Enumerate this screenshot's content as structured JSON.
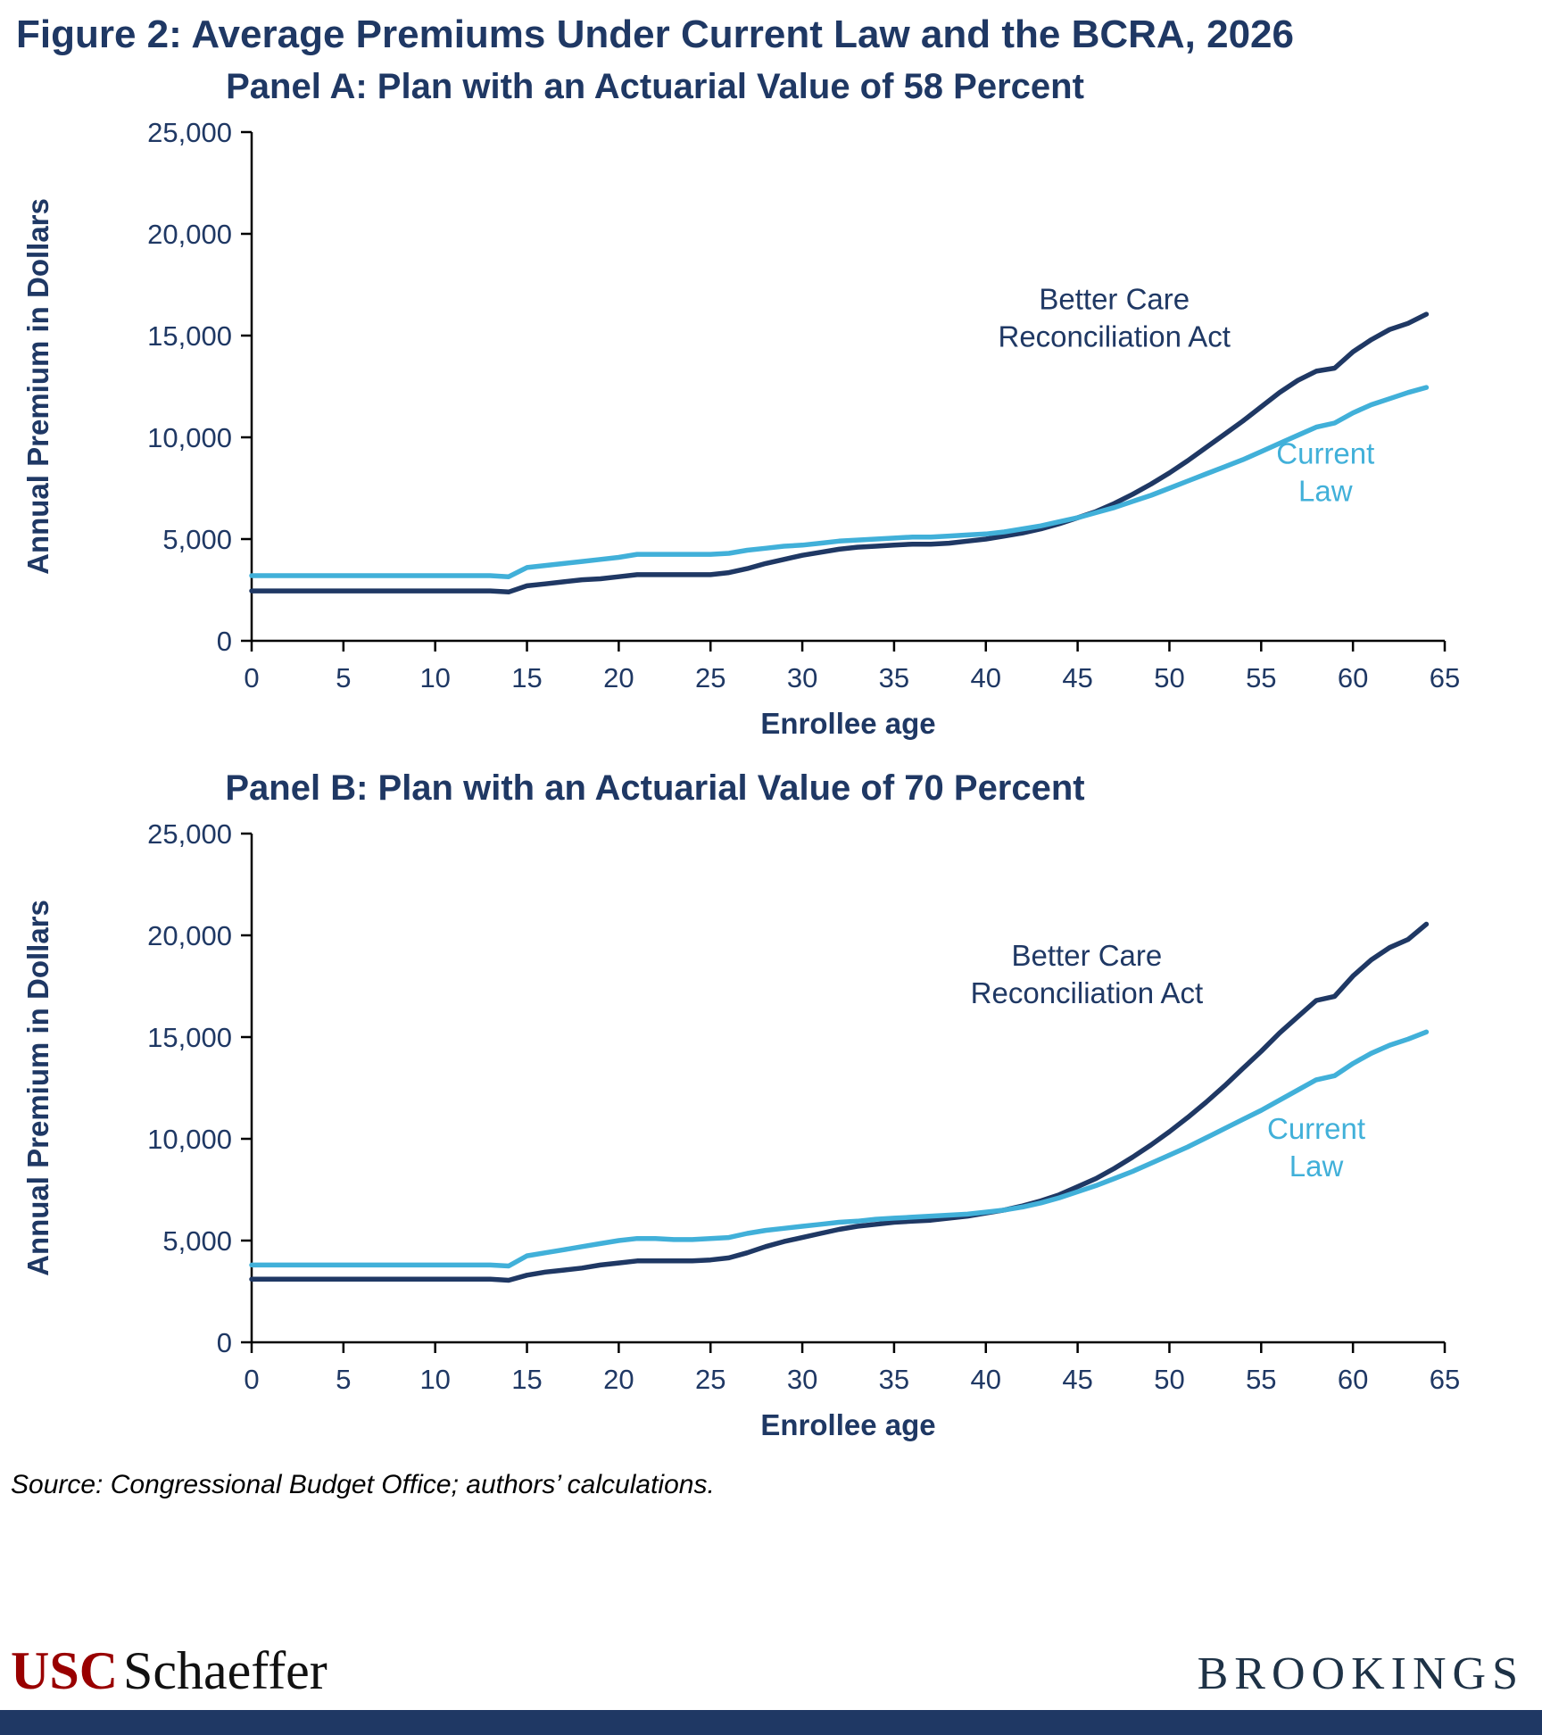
{
  "figure": {
    "title": "Figure 2: Average Premiums Under Current Law and the BCRA, 2026",
    "source": "Source: Congressional Budget Office; authors’ calculations.",
    "logos": {
      "usc": "USC",
      "schaeffer": "Schaeffer",
      "brookings": "BROOKINGS"
    }
  },
  "colors": {
    "navy": "#1F3864",
    "light_blue": "#41B0D9",
    "axis": "#000000",
    "tick_label": "#1F3864",
    "usc_red": "#990000",
    "brookings_navy": "#1E3246",
    "footer_bar": "#1F3864"
  },
  "chart_data": [
    {
      "type": "line",
      "title": "Panel A: Plan with an Actuarial Value of 58 Percent",
      "xlabel": "Enrollee age",
      "ylabel": "Annual Premium in Dollars",
      "xlim": [
        0,
        65
      ],
      "ylim": [
        0,
        25000
      ],
      "xticks": [
        0,
        5,
        10,
        15,
        20,
        25,
        30,
        35,
        40,
        45,
        50,
        55,
        60,
        65
      ],
      "yticks": [
        0,
        5000,
        10000,
        15000,
        20000,
        25000
      ],
      "grid": false,
      "x": [
        0,
        1,
        2,
        3,
        4,
        5,
        6,
        7,
        8,
        9,
        10,
        11,
        12,
        13,
        14,
        15,
        16,
        17,
        18,
        19,
        20,
        21,
        22,
        23,
        24,
        25,
        26,
        27,
        28,
        29,
        30,
        31,
        32,
        33,
        34,
        35,
        36,
        37,
        38,
        39,
        40,
        41,
        42,
        43,
        44,
        45,
        46,
        47,
        48,
        49,
        50,
        51,
        52,
        53,
        54,
        55,
        56,
        57,
        58,
        59,
        60,
        61,
        62,
        63,
        64
      ],
      "series": [
        {
          "name": "Better Care Reconciliation Act",
          "color": "navy",
          "values": [
            2450,
            2450,
            2450,
            2450,
            2450,
            2450,
            2450,
            2450,
            2450,
            2450,
            2450,
            2450,
            2450,
            2450,
            2400,
            2700,
            2800,
            2900,
            3000,
            3050,
            3150,
            3250,
            3250,
            3250,
            3250,
            3250,
            3350,
            3550,
            3800,
            4000,
            4200,
            4350,
            4500,
            4600,
            4650,
            4700,
            4750,
            4750,
            4800,
            4900,
            5000,
            5150,
            5300,
            5500,
            5750,
            6050,
            6350,
            6750,
            7200,
            7700,
            8250,
            8850,
            9500,
            10150,
            10800,
            11500,
            12200,
            12800,
            13250,
            13400,
            14200,
            14800,
            15300,
            15600,
            16050
          ]
        },
        {
          "name": "Current Law",
          "color": "light_blue",
          "values": [
            3200,
            3200,
            3200,
            3200,
            3200,
            3200,
            3200,
            3200,
            3200,
            3200,
            3200,
            3200,
            3200,
            3200,
            3150,
            3600,
            3700,
            3800,
            3900,
            4000,
            4100,
            4250,
            4250,
            4250,
            4250,
            4250,
            4300,
            4450,
            4550,
            4650,
            4700,
            4800,
            4900,
            4950,
            5000,
            5050,
            5100,
            5100,
            5150,
            5200,
            5250,
            5350,
            5500,
            5650,
            5850,
            6050,
            6300,
            6550,
            6850,
            7150,
            7500,
            7850,
            8200,
            8550,
            8900,
            9300,
            9700,
            10100,
            10500,
            10700,
            11200,
            11600,
            11900,
            12200,
            12450
          ]
        }
      ],
      "annotations": [
        {
          "lines": [
            "Better Care",
            "Reconciliation Act"
          ],
          "x": 47,
          "y": 16300,
          "color": "navy"
        },
        {
          "lines": [
            "Current",
            "Law"
          ],
          "x": 58.5,
          "y": 8700,
          "color": "light_blue"
        }
      ]
    },
    {
      "type": "line",
      "title": "Panel B: Plan with an Actuarial Value of 70 Percent",
      "xlabel": "Enrollee age",
      "ylabel": "Annual Premium in Dollars",
      "xlim": [
        0,
        65
      ],
      "ylim": [
        0,
        25000
      ],
      "xticks": [
        0,
        5,
        10,
        15,
        20,
        25,
        30,
        35,
        40,
        45,
        50,
        55,
        60,
        65
      ],
      "yticks": [
        0,
        5000,
        10000,
        15000,
        20000,
        25000
      ],
      "grid": false,
      "x": [
        0,
        1,
        2,
        3,
        4,
        5,
        6,
        7,
        8,
        9,
        10,
        11,
        12,
        13,
        14,
        15,
        16,
        17,
        18,
        19,
        20,
        21,
        22,
        23,
        24,
        25,
        26,
        27,
        28,
        29,
        30,
        31,
        32,
        33,
        34,
        35,
        36,
        37,
        38,
        39,
        40,
        41,
        42,
        43,
        44,
        45,
        46,
        47,
        48,
        49,
        50,
        51,
        52,
        53,
        54,
        55,
        56,
        57,
        58,
        59,
        60,
        61,
        62,
        63,
        64
      ],
      "series": [
        {
          "name": "Better Care Reconciliation Act",
          "color": "navy",
          "values": [
            3100,
            3100,
            3100,
            3100,
            3100,
            3100,
            3100,
            3100,
            3100,
            3100,
            3100,
            3100,
            3100,
            3100,
            3050,
            3300,
            3450,
            3550,
            3650,
            3800,
            3900,
            4000,
            4000,
            4000,
            4000,
            4050,
            4150,
            4400,
            4700,
            4950,
            5150,
            5350,
            5550,
            5700,
            5800,
            5900,
            5950,
            6000,
            6100,
            6200,
            6350,
            6500,
            6700,
            6950,
            7250,
            7650,
            8050,
            8550,
            9100,
            9700,
            10350,
            11050,
            11800,
            12600,
            13450,
            14300,
            15200,
            16000,
            16800,
            17000,
            18000,
            18800,
            19400,
            19800,
            20550
          ]
        },
        {
          "name": "Current Law",
          "color": "light_blue",
          "values": [
            3800,
            3800,
            3800,
            3800,
            3800,
            3800,
            3800,
            3800,
            3800,
            3800,
            3800,
            3800,
            3800,
            3800,
            3750,
            4250,
            4400,
            4550,
            4700,
            4850,
            5000,
            5100,
            5100,
            5050,
            5050,
            5100,
            5150,
            5350,
            5500,
            5600,
            5700,
            5800,
            5900,
            5950,
            6050,
            6100,
            6150,
            6200,
            6250,
            6300,
            6400,
            6500,
            6650,
            6850,
            7100,
            7400,
            7700,
            8050,
            8400,
            8800,
            9200,
            9600,
            10050,
            10500,
            10950,
            11400,
            11900,
            12400,
            12900,
            13100,
            13700,
            14200,
            14600,
            14900,
            15250
          ]
        }
      ],
      "annotations": [
        {
          "lines": [
            "Better Care",
            "Reconciliation Act"
          ],
          "x": 45.5,
          "y": 18500,
          "color": "navy"
        },
        {
          "lines": [
            "Current",
            "Law"
          ],
          "x": 58,
          "y": 10000,
          "color": "light_blue"
        }
      ]
    }
  ]
}
